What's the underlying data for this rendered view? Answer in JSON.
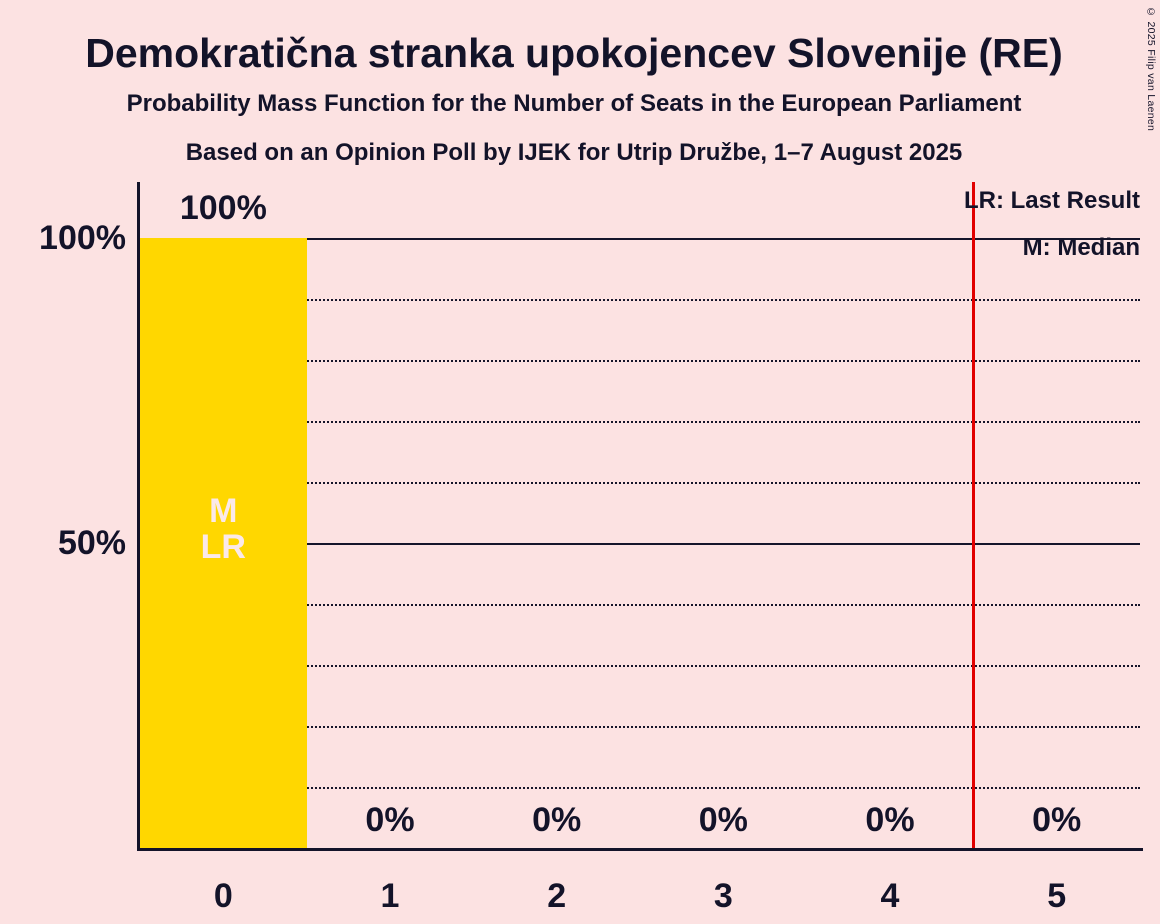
{
  "copyright": "© 2025 Filip van Laenen",
  "colors": {
    "background": "#fce2e2",
    "text": "#131329",
    "bar": "#ffd700",
    "bar_label": "#fbe9e9",
    "last_result_line": "#e10000",
    "grid": "#15152a"
  },
  "chart_data": {
    "type": "bar",
    "title": "Demokratična stranka upokojencev Slovenije (RE)",
    "subtitle": "Probability Mass Function for the Number of Seats in the European Parliament",
    "source_line": "Based on an Opinion Poll by IJEK for Utrip Družbe, 1–7 August 2025",
    "legend": {
      "last_result": "LR: Last Result",
      "median": "M: Median"
    },
    "categories": [
      "0",
      "1",
      "2",
      "3",
      "4",
      "5"
    ],
    "values": [
      100,
      0,
      0,
      0,
      0,
      0
    ],
    "bar_value_labels": [
      "100%",
      "0%",
      "0%",
      "0%",
      "0%",
      "0%"
    ],
    "in_bar_annotations": [
      [
        "M",
        "LR"
      ],
      [],
      [],
      [],
      [],
      []
    ],
    "median_seats": 0,
    "last_result_seats": 0,
    "last_result_line_slot": 5,
    "xlabel": "",
    "ylabel": "",
    "ylim": [
      0,
      100
    ],
    "yticks": [
      {
        "value": 100,
        "label": "100%"
      },
      {
        "value": 50,
        "label": "50%"
      }
    ],
    "gridlines_percent": [
      10,
      20,
      30,
      40,
      50,
      60,
      70,
      80,
      90,
      100
    ],
    "solid_gridlines_percent": [
      50,
      100
    ],
    "legend_position": "top-right",
    "grid": "on"
  }
}
